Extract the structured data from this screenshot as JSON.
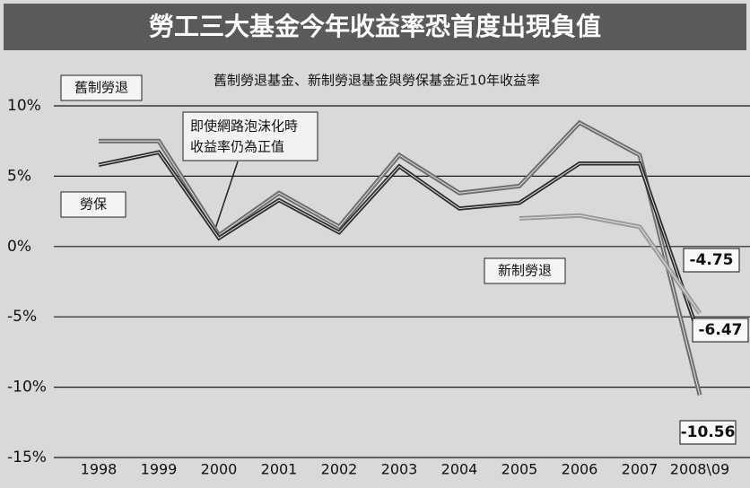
{
  "chart_data": {
    "type": "line",
    "title": "勞工三大基金今年收益率恐首度出現負值",
    "subtitle": "舊制勞退基金、新制勞退基金與勞保基金近10年收益率",
    "annotation": [
      "即使網路泡沫化時",
      "收益率仍為正值"
    ],
    "categories": [
      "1998",
      "1999",
      "2000",
      "2001",
      "2002",
      "2003",
      "2004",
      "2005",
      "2006",
      "2007",
      "2008\\09"
    ],
    "series": [
      {
        "name": "舊制勞退",
        "color": "#6e6e6e",
        "values": [
          7.5,
          7.5,
          0.8,
          3.8,
          1.4,
          6.5,
          3.8,
          4.3,
          8.8,
          6.5,
          -10.56
        ]
      },
      {
        "name": "勞保",
        "color": "#2a2a2a",
        "values": [
          5.8,
          6.7,
          0.6,
          3.3,
          1.0,
          5.7,
          2.7,
          3.1,
          5.9,
          5.9,
          -6.47
        ]
      },
      {
        "name": "新制勞退",
        "color": "#9a9a9a",
        "values": [
          null,
          null,
          null,
          null,
          null,
          null,
          null,
          2.0,
          2.2,
          1.4,
          -4.75
        ]
      }
    ],
    "ylim": [
      -15,
      10
    ],
    "yticks": [
      {
        "value": -15,
        "label": "-15%"
      },
      {
        "value": -10,
        "label": "-10%"
      },
      {
        "value": -5,
        "label": "-5%"
      },
      {
        "value": 0,
        "label": "0%"
      },
      {
        "value": 5,
        "label": "5%"
      },
      {
        "value": 10,
        "label": "10%"
      }
    ],
    "grid": true
  }
}
